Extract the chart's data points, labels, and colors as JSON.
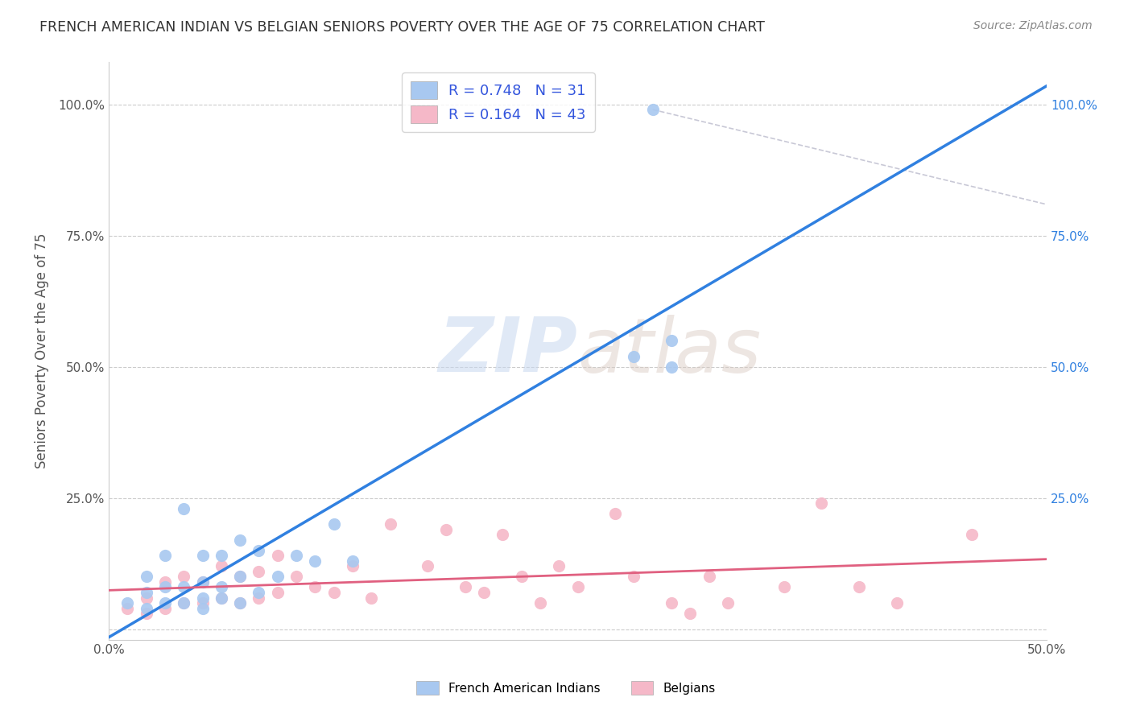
{
  "title": "FRENCH AMERICAN INDIAN VS BELGIAN SENIORS POVERTY OVER THE AGE OF 75 CORRELATION CHART",
  "source": "Source: ZipAtlas.com",
  "ylabel": "Seniors Poverty Over the Age of 75",
  "xlim": [
    0.0,
    0.5
  ],
  "ylim": [
    -0.02,
    1.08
  ],
  "ytick_vals": [
    0.0,
    0.25,
    0.5,
    0.75,
    1.0
  ],
  "ytick_labels_left": [
    "",
    "25.0%",
    "50.0%",
    "75.0%",
    "100.0%"
  ],
  "ytick_labels_right": [
    "",
    "25.0%",
    "50.0%",
    "75.0%",
    "100.0%"
  ],
  "xtick_vals": [
    0.0,
    0.5
  ],
  "xtick_labels": [
    "0.0%",
    "50.0%"
  ],
  "r_blue": 0.748,
  "n_blue": 31,
  "r_pink": 0.164,
  "n_pink": 43,
  "blue_scatter_x": [
    0.01,
    0.02,
    0.02,
    0.02,
    0.03,
    0.03,
    0.03,
    0.04,
    0.04,
    0.04,
    0.05,
    0.05,
    0.05,
    0.05,
    0.06,
    0.06,
    0.06,
    0.07,
    0.07,
    0.07,
    0.08,
    0.08,
    0.09,
    0.1,
    0.11,
    0.12,
    0.13,
    0.28,
    0.29,
    0.3,
    0.3
  ],
  "blue_scatter_y": [
    0.05,
    0.04,
    0.07,
    0.1,
    0.05,
    0.08,
    0.14,
    0.05,
    0.08,
    0.23,
    0.04,
    0.06,
    0.09,
    0.14,
    0.06,
    0.08,
    0.14,
    0.05,
    0.1,
    0.17,
    0.07,
    0.15,
    0.1,
    0.14,
    0.13,
    0.2,
    0.13,
    0.52,
    0.99,
    0.5,
    0.55
  ],
  "pink_scatter_x": [
    0.01,
    0.02,
    0.02,
    0.03,
    0.03,
    0.04,
    0.04,
    0.05,
    0.05,
    0.06,
    0.06,
    0.07,
    0.07,
    0.08,
    0.08,
    0.09,
    0.09,
    0.1,
    0.11,
    0.12,
    0.13,
    0.14,
    0.15,
    0.17,
    0.18,
    0.19,
    0.2,
    0.21,
    0.22,
    0.23,
    0.24,
    0.25,
    0.27,
    0.28,
    0.3,
    0.31,
    0.32,
    0.33,
    0.36,
    0.38,
    0.4,
    0.42,
    0.46
  ],
  "pink_scatter_y": [
    0.04,
    0.03,
    0.06,
    0.04,
    0.09,
    0.05,
    0.1,
    0.05,
    0.09,
    0.06,
    0.12,
    0.05,
    0.1,
    0.06,
    0.11,
    0.07,
    0.14,
    0.1,
    0.08,
    0.07,
    0.12,
    0.06,
    0.2,
    0.12,
    0.19,
    0.08,
    0.07,
    0.18,
    0.1,
    0.05,
    0.12,
    0.08,
    0.22,
    0.1,
    0.05,
    0.03,
    0.1,
    0.05,
    0.08,
    0.24,
    0.08,
    0.05,
    0.18
  ],
  "blue_color": "#A8C8F0",
  "pink_color": "#F5B8C8",
  "blue_line_color": "#3080E0",
  "pink_line_color": "#E06080",
  "grid_color": "#CCCCCC",
  "background_color": "#FFFFFF",
  "watermark_zip": "ZIP",
  "watermark_atlas": "atlas",
  "legend_r_color": "#3355DD",
  "title_color": "#333333",
  "source_color": "#888888",
  "ylabel_color": "#555555"
}
